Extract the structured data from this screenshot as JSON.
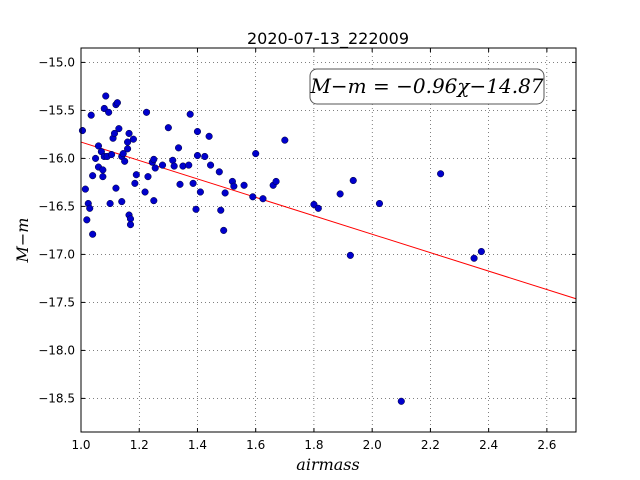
{
  "chart_data": {
    "type": "scatter",
    "title": "2020-07-13_222009",
    "xlabel": "airmass",
    "ylabel": "M−m",
    "xlim": [
      1.0,
      2.7
    ],
    "ylim": [
      -14.85,
      -18.85
    ],
    "x_ticks": [
      1.0,
      1.2,
      1.4,
      1.6,
      1.8,
      2.0,
      2.2,
      2.4,
      2.6
    ],
    "x_tick_labels": [
      "1.0",
      "1.2",
      "1.4",
      "1.6",
      "1.8",
      "2.0",
      "2.2",
      "2.4",
      "2.6"
    ],
    "y_ticks": [
      -15.0,
      -15.5,
      -16.0,
      -16.5,
      -17.0,
      -17.5,
      -18.0,
      -18.5
    ],
    "y_tick_labels": [
      "−15.0",
      "−15.5",
      "−16.0",
      "−16.5",
      "−17.0",
      "−17.5",
      "−18.0",
      "−18.5"
    ],
    "grid": true,
    "annotation": "M−m = −0.96χ−14.87",
    "annotation_position": "top-right",
    "point_color": "#0000cc",
    "line_color": "#ff0000",
    "fit": {
      "slope": -0.96,
      "intercept": -14.87,
      "x_range": [
        1.0,
        2.7
      ]
    },
    "points": [
      [
        1.005,
        -15.71
      ],
      [
        1.015,
        -16.32
      ],
      [
        1.02,
        -16.64
      ],
      [
        1.025,
        -16.47
      ],
      [
        1.03,
        -16.52
      ],
      [
        1.035,
        -15.55
      ],
      [
        1.04,
        -16.18
      ],
      [
        1.04,
        -16.79
      ],
      [
        1.05,
        -16.0
      ],
      [
        1.06,
        -15.87
      ],
      [
        1.06,
        -16.09
      ],
      [
        1.07,
        -15.93
      ],
      [
        1.075,
        -16.12
      ],
      [
        1.075,
        -16.19
      ],
      [
        1.08,
        -15.98
      ],
      [
        1.08,
        -15.48
      ],
      [
        1.085,
        -15.35
      ],
      [
        1.09,
        -15.98
      ],
      [
        1.095,
        -15.52
      ],
      [
        1.1,
        -16.47
      ],
      [
        1.105,
        -15.96
      ],
      [
        1.11,
        -15.79
      ],
      [
        1.115,
        -15.74
      ],
      [
        1.12,
        -16.31
      ],
      [
        1.12,
        -15.44
      ],
      [
        1.125,
        -15.42
      ],
      [
        1.13,
        -15.69
      ],
      [
        1.14,
        -15.98
      ],
      [
        1.14,
        -16.45
      ],
      [
        1.145,
        -15.95
      ],
      [
        1.15,
        -16.03
      ],
      [
        1.16,
        -15.9
      ],
      [
        1.16,
        -15.83
      ],
      [
        1.165,
        -16.59
      ],
      [
        1.165,
        -15.74
      ],
      [
        1.17,
        -16.63
      ],
      [
        1.17,
        -16.69
      ],
      [
        1.18,
        -15.8
      ],
      [
        1.185,
        -16.26
      ],
      [
        1.19,
        -16.17
      ],
      [
        1.22,
        -16.35
      ],
      [
        1.225,
        -15.52
      ],
      [
        1.23,
        -16.19
      ],
      [
        1.245,
        -16.04
      ],
      [
        1.25,
        -16.01
      ],
      [
        1.25,
        -16.44
      ],
      [
        1.255,
        -16.1
      ],
      [
        1.28,
        -16.07
      ],
      [
        1.3,
        -15.68
      ],
      [
        1.315,
        -16.02
      ],
      [
        1.32,
        -16.08
      ],
      [
        1.335,
        -15.89
      ],
      [
        1.34,
        -16.27
      ],
      [
        1.35,
        -16.08
      ],
      [
        1.37,
        -16.07
      ],
      [
        1.375,
        -15.54
      ],
      [
        1.385,
        -16.26
      ],
      [
        1.395,
        -16.53
      ],
      [
        1.4,
        -15.72
      ],
      [
        1.4,
        -15.97
      ],
      [
        1.41,
        -16.35
      ],
      [
        1.425,
        -15.98
      ],
      [
        1.44,
        -15.77
      ],
      [
        1.445,
        -16.07
      ],
      [
        1.475,
        -16.14
      ],
      [
        1.48,
        -16.54
      ],
      [
        1.49,
        -16.75
      ],
      [
        1.495,
        -16.36
      ],
      [
        1.52,
        -16.24
      ],
      [
        1.525,
        -16.29
      ],
      [
        1.56,
        -16.28
      ],
      [
        1.59,
        -16.4
      ],
      [
        1.6,
        -15.95
      ],
      [
        1.625,
        -16.42
      ],
      [
        1.66,
        -16.28
      ],
      [
        1.67,
        -16.24
      ],
      [
        1.7,
        -15.81
      ],
      [
        1.8,
        -16.48
      ],
      [
        1.815,
        -16.52
      ],
      [
        1.89,
        -16.37
      ],
      [
        1.925,
        -17.01
      ],
      [
        1.935,
        -16.23
      ],
      [
        2.025,
        -16.47
      ],
      [
        2.1,
        -18.53
      ],
      [
        2.235,
        -16.16
      ],
      [
        2.35,
        -17.04
      ],
      [
        2.375,
        -16.97
      ]
    ]
  }
}
